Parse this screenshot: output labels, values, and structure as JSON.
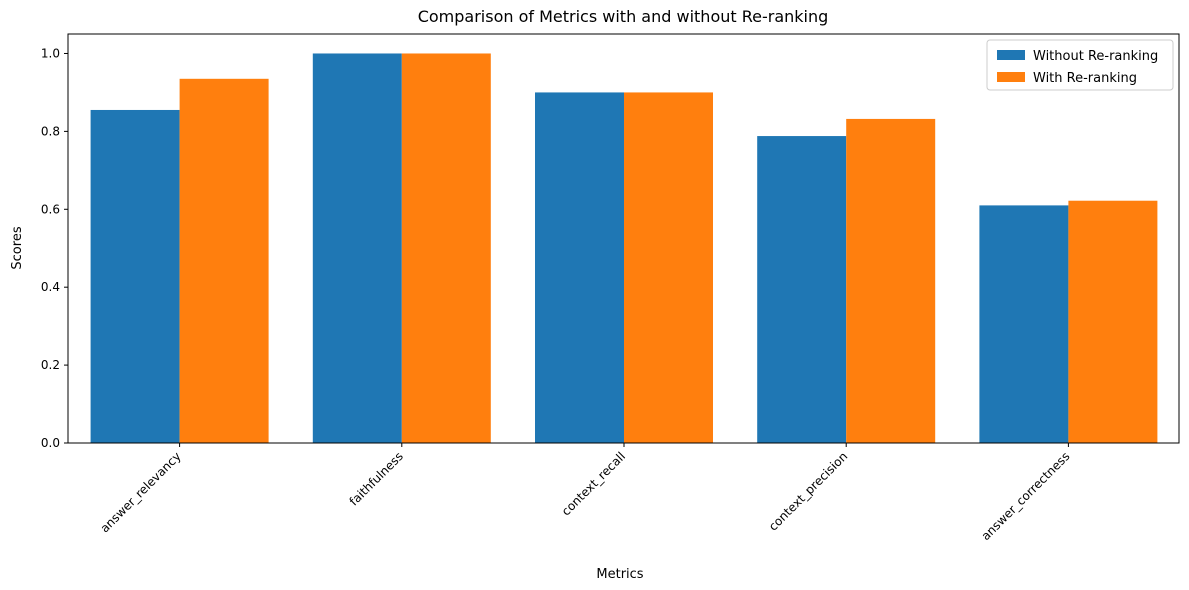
{
  "chart_data": {
    "type": "bar",
    "title": "Comparison of Metrics with and without Re-ranking",
    "xlabel": "Metrics",
    "ylabel": "Scores",
    "categories": [
      "answer_relevancy",
      "faithfulness",
      "context_recall",
      "context_precision",
      "answer_correctness"
    ],
    "series": [
      {
        "name": "Without Re-ranking",
        "color": "#1f77b4",
        "values": [
          0.855,
          1.0,
          0.9,
          0.788,
          0.61
        ]
      },
      {
        "name": "With Re-ranking",
        "color": "#ff7f0e",
        "values": [
          0.935,
          1.0,
          0.9,
          0.832,
          0.622
        ]
      }
    ],
    "ylim": [
      0,
      1.05
    ],
    "yticks": [
      "0.0",
      "0.2",
      "0.4",
      "0.6",
      "0.8",
      "1.0"
    ],
    "grid": false,
    "legend_position": "top-right"
  }
}
